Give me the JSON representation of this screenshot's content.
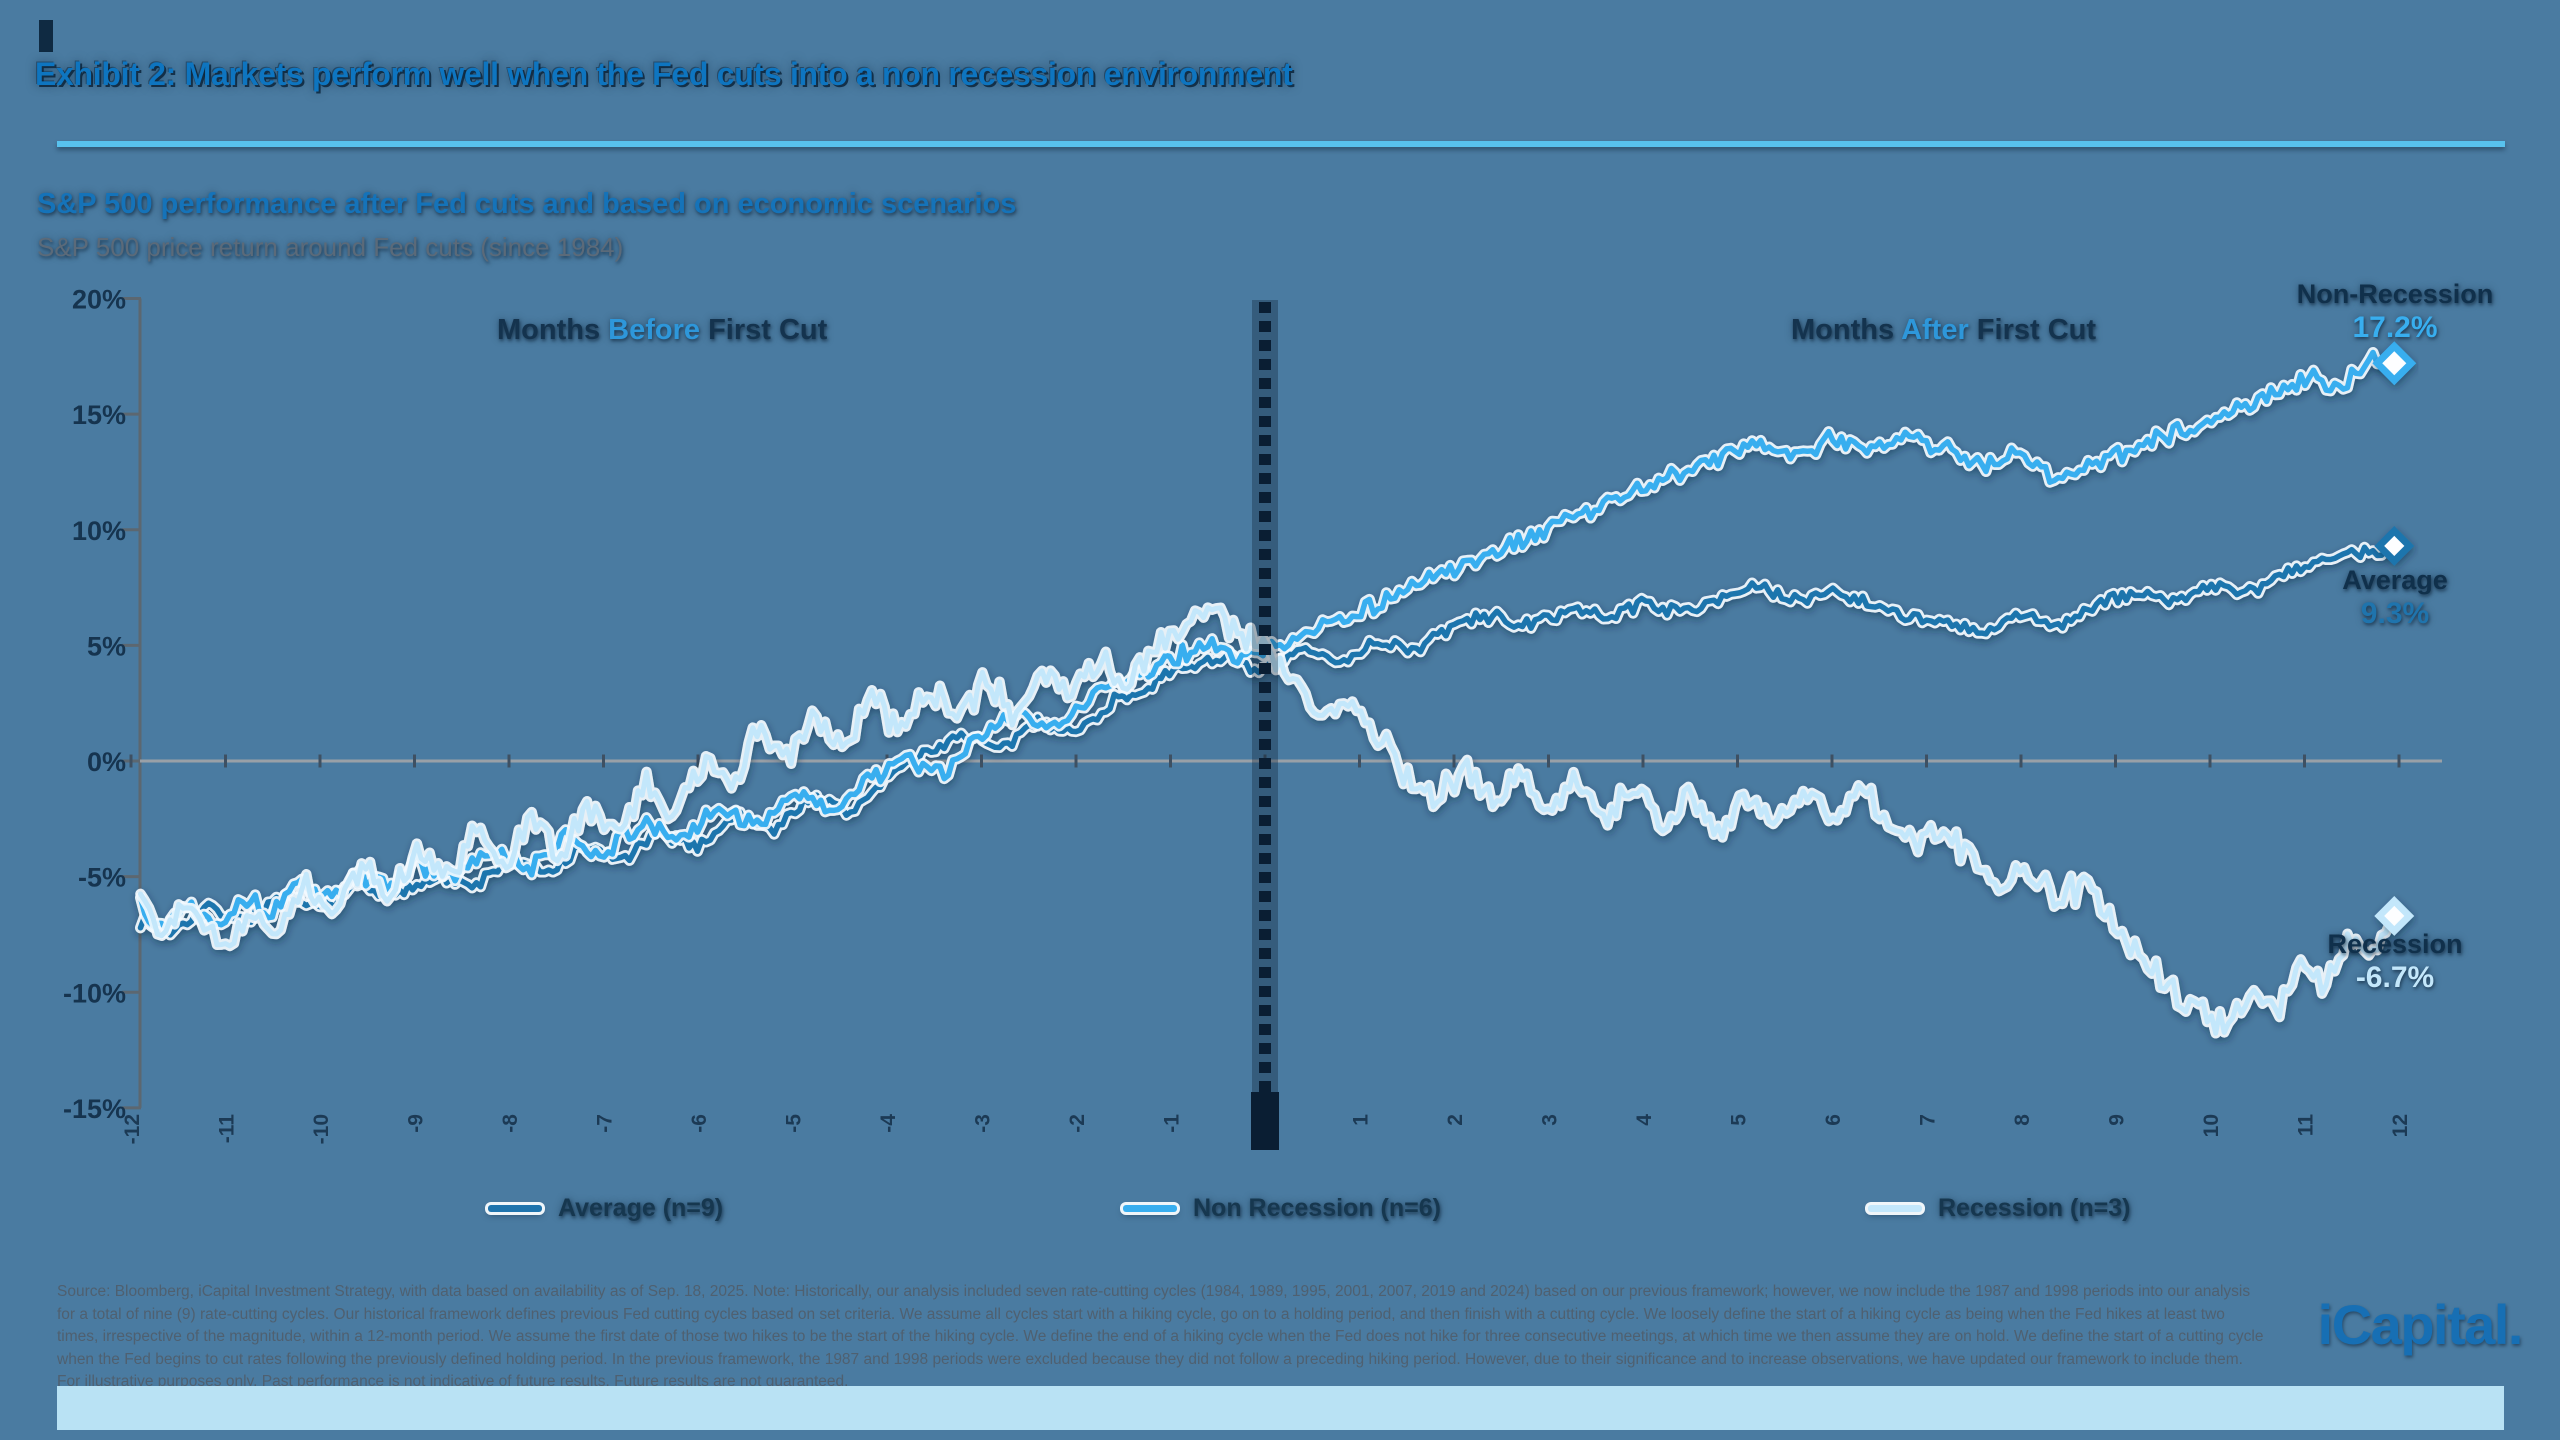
{
  "page": {
    "title": "Exhibit 2: Markets perform well when the Fed cuts into a non recession environment",
    "subtitle": "S&P 500 performance after Fed cuts and based on economic scenarios",
    "description": "S&P 500 price return around Fed cuts (since 1984)",
    "footnote": "Source: Bloomberg, iCapital Investment Strategy, with data based on availability as of Sep. 18, 2025. Note: Historically, our analysis included seven rate-cutting cycles (1984, 1989, 1995, 2001, 2007, 2019 and 2024) based on our previous framework; however, we now include the 1987 and 1998 periods into our analysis for a total of nine (9) rate-cutting cycles. Our historical framework defines previous Fed cutting cycles based on set criteria. We assume all cycles start with a hiking cycle, go on to a holding period, and then finish with a cutting cycle. We loosely define the start of a hiking cycle as being when the Fed hikes at least two times, irrespective of the magnitude, within a 12-month period. We assume the first date of those two hikes to be the start of the hiking cycle. We define the end of a hiking cycle when the Fed does not hike for three consecutive meetings, at which time we then assume they are on hold. We define the start of a cutting cycle when the Fed begins to cut rates following the previously defined holding period. In the previous framework, the 1987 and 1998 periods were excluded because they did not follow a preceding hiking period. However, due to their significance and to increase observations, we have updated our framework to include them. For illustrative purposes only. Past performance is not indicative of future results. Future results are not guaranteed.",
    "brand": "iCapital.",
    "colors": {
      "background": "#4a7ba1",
      "accent_blue": "#1573b9",
      "title_blue": "#0e75c0",
      "divider_blue": "#58c2ee",
      "dark_navy": "#14334e",
      "zero_line_gray": "#99a0a7",
      "event_line_navy": "#0a1e33",
      "bottom_band": "#b9e2f4"
    }
  },
  "chart_data": {
    "type": "line",
    "title": "S&P 500 price return around Fed cuts (since 1984)",
    "grid": "zero-line only",
    "legend_position": "bottom",
    "x_axis": {
      "unit": "months relative to first Fed cut",
      "range": [
        -12,
        12
      ],
      "ticks": [
        -12,
        -11,
        -10,
        -9,
        -8,
        -7,
        -6,
        -5,
        -4,
        -3,
        -2,
        -1,
        0,
        1,
        2,
        3,
        4,
        5,
        6,
        7,
        8,
        9,
        10,
        11,
        12
      ],
      "annotation_before": {
        "pre": "Months ",
        "em": "Before",
        "post": " First Cut"
      },
      "annotation_after": {
        "pre": "Months ",
        "em": "After",
        "post": " First Cut"
      }
    },
    "y_axis": {
      "unit": "%",
      "min": -15,
      "max": 20,
      "ticks_pct": [
        20,
        15,
        10,
        5,
        0,
        -5,
        -10,
        -15
      ]
    },
    "event_line_x": 0,
    "series": [
      {
        "id": "average",
        "name": "Average (n=9)",
        "color": "#1f74ad",
        "end_label": "Average",
        "end_value": 9.3,
        "end_value_label": "9.3%",
        "anchors_month_pct": [
          [
            -11.9,
            -6.9
          ],
          [
            -11.6,
            -7.4
          ],
          [
            -11.2,
            -6.3
          ],
          [
            -10.8,
            -6.9
          ],
          [
            -10.4,
            -5.9
          ],
          [
            -10,
            -6.4
          ],
          [
            -9.6,
            -5.4
          ],
          [
            -9.2,
            -5.9
          ],
          [
            -8.8,
            -4.9
          ],
          [
            -8.4,
            -5.5
          ],
          [
            -8,
            -4.3
          ],
          [
            -7.6,
            -4.9
          ],
          [
            -7.2,
            -3.7
          ],
          [
            -6.8,
            -4.3
          ],
          [
            -6.4,
            -3.1
          ],
          [
            -6,
            -3.7
          ],
          [
            -5.6,
            -2.3
          ],
          [
            -5.2,
            -3.0
          ],
          [
            -4.8,
            -1.5
          ],
          [
            -4.4,
            -2.3
          ],
          [
            -4,
            -0.7
          ],
          [
            -3.6,
            0.3
          ],
          [
            -3.2,
            1.2
          ],
          [
            -2.8,
            0.4
          ],
          [
            -2.4,
            1.8
          ],
          [
            -2,
            1.2
          ],
          [
            -1.6,
            2.6
          ],
          [
            -1.2,
            3.3
          ],
          [
            -0.8,
            4.1
          ],
          [
            -0.4,
            4.6
          ],
          [
            -0.15,
            3.8
          ],
          [
            0,
            4.0
          ],
          [
            0.4,
            4.8
          ],
          [
            0.8,
            4.3
          ],
          [
            1.2,
            5.2
          ],
          [
            1.6,
            4.8
          ],
          [
            2,
            5.9
          ],
          [
            2.4,
            6.3
          ],
          [
            2.8,
            5.8
          ],
          [
            3.2,
            6.6
          ],
          [
            3.6,
            6.2
          ],
          [
            4,
            6.9
          ],
          [
            4.4,
            6.4
          ],
          [
            4.8,
            7.1
          ],
          [
            5.2,
            7.5
          ],
          [
            5.6,
            6.9
          ],
          [
            6,
            7.4
          ],
          [
            6.4,
            6.8
          ],
          [
            6.8,
            6.3
          ],
          [
            7.2,
            5.9
          ],
          [
            7.6,
            5.5
          ],
          [
            8,
            6.3
          ],
          [
            8.4,
            5.9
          ],
          [
            8.8,
            6.7
          ],
          [
            9.2,
            7.3
          ],
          [
            9.6,
            6.9
          ],
          [
            10,
            7.6
          ],
          [
            10.4,
            7.2
          ],
          [
            10.8,
            8.1
          ],
          [
            11.2,
            8.7
          ],
          [
            11.5,
            9.2
          ],
          [
            11.75,
            8.9
          ],
          [
            11.95,
            9.3
          ]
        ]
      },
      {
        "id": "non_recession",
        "name": "Non Recession (n=6)",
        "color": "#38aeef",
        "end_label": "Non-Recession",
        "end_value": 17.2,
        "end_value_label": "17.2%",
        "anchors_month_pct": [
          [
            -11.9,
            -5.9
          ],
          [
            -11.7,
            -7.3
          ],
          [
            -11.4,
            -6.1
          ],
          [
            -11.1,
            -7.0
          ],
          [
            -10.8,
            -5.9
          ],
          [
            -10.5,
            -6.6
          ],
          [
            -10.2,
            -5.2
          ],
          [
            -9.9,
            -6.0
          ],
          [
            -9.6,
            -4.8
          ],
          [
            -9.3,
            -5.5
          ],
          [
            -9,
            -4.4
          ],
          [
            -8.6,
            -5.1
          ],
          [
            -8.2,
            -3.9
          ],
          [
            -7.8,
            -4.7
          ],
          [
            -7.4,
            -3.3
          ],
          [
            -7,
            -4.0
          ],
          [
            -6.6,
            -2.7
          ],
          [
            -6.2,
            -3.5
          ],
          [
            -5.8,
            -2.0
          ],
          [
            -5.4,
            -2.8
          ],
          [
            -5,
            -1.4
          ],
          [
            -4.6,
            -2.2
          ],
          [
            -4.2,
            -0.8
          ],
          [
            -3.8,
            0.2
          ],
          [
            -3.4,
            -0.6
          ],
          [
            -3,
            1.1
          ],
          [
            -2.6,
            2.2
          ],
          [
            -2.2,
            1.4
          ],
          [
            -1.8,
            2.9
          ],
          [
            -1.4,
            3.7
          ],
          [
            -1,
            4.4
          ],
          [
            -0.6,
            5.1
          ],
          [
            -0.3,
            4.4
          ],
          [
            0,
            4.7
          ],
          [
            0.4,
            5.5
          ],
          [
            0.8,
            6.2
          ],
          [
            1.2,
            6.8
          ],
          [
            1.6,
            7.6
          ],
          [
            2,
            8.3
          ],
          [
            2.4,
            8.9
          ],
          [
            2.8,
            9.6
          ],
          [
            3.2,
            10.4
          ],
          [
            3.6,
            11.1
          ],
          [
            4,
            11.9
          ],
          [
            4.4,
            12.5
          ],
          [
            4.8,
            13.1
          ],
          [
            5.2,
            13.7
          ],
          [
            5.6,
            13.2
          ],
          [
            6,
            13.9
          ],
          [
            6.4,
            13.4
          ],
          [
            6.8,
            14.1
          ],
          [
            7.2,
            13.5
          ],
          [
            7.6,
            12.8
          ],
          [
            8,
            13.3
          ],
          [
            8.4,
            12.2
          ],
          [
            8.8,
            12.8
          ],
          [
            9.2,
            13.5
          ],
          [
            9.6,
            14.2
          ],
          [
            10,
            14.8
          ],
          [
            10.4,
            15.4
          ],
          [
            10.8,
            16.1
          ],
          [
            11.1,
            16.7
          ],
          [
            11.4,
            16.1
          ],
          [
            11.7,
            17.4
          ],
          [
            11.95,
            17.2
          ]
        ]
      },
      {
        "id": "recession",
        "name": "Recession (n=3)",
        "color": "#c3e7fb",
        "end_label": "Recession",
        "end_value": -6.7,
        "end_value_label": "-6.7%",
        "anchors_month_pct": [
          [
            -11.9,
            -5.3
          ],
          [
            -11.65,
            -7.7
          ],
          [
            -11.35,
            -5.9
          ],
          [
            -11.05,
            -8.3
          ],
          [
            -10.75,
            -6.5
          ],
          [
            -10.45,
            -7.5
          ],
          [
            -10.15,
            -5.3
          ],
          [
            -9.85,
            -6.7
          ],
          [
            -9.55,
            -4.5
          ],
          [
            -9.25,
            -5.9
          ],
          [
            -8.95,
            -3.7
          ],
          [
            -8.65,
            -5.1
          ],
          [
            -8.35,
            -3.1
          ],
          [
            -8.05,
            -4.7
          ],
          [
            -7.75,
            -2.5
          ],
          [
            -7.45,
            -4.1
          ],
          [
            -7.15,
            -1.9
          ],
          [
            -6.85,
            -3.3
          ],
          [
            -6.55,
            -0.9
          ],
          [
            -6.25,
            -2.3
          ],
          [
            -5.95,
            0.1
          ],
          [
            -5.65,
            -1.3
          ],
          [
            -5.35,
            1.5
          ],
          [
            -5.05,
            0.1
          ],
          [
            -4.75,
            2.1
          ],
          [
            -4.45,
            0.7
          ],
          [
            -4.15,
            2.7
          ],
          [
            -3.85,
            1.3
          ],
          [
            -3.55,
            3.1
          ],
          [
            -3.25,
            1.7
          ],
          [
            -2.95,
            3.5
          ],
          [
            -2.65,
            2.1
          ],
          [
            -2.35,
            4.1
          ],
          [
            -2.05,
            2.7
          ],
          [
            -1.75,
            4.5
          ],
          [
            -1.45,
            3.1
          ],
          [
            -1.15,
            5.1
          ],
          [
            -0.85,
            5.9
          ],
          [
            -0.55,
            6.7
          ],
          [
            -0.3,
            5.5
          ],
          [
            0,
            5.1
          ],
          [
            0.3,
            3.5
          ],
          [
            0.6,
            1.9
          ],
          [
            0.9,
            2.9
          ],
          [
            1.2,
            1.1
          ],
          [
            1.5,
            -0.7
          ],
          [
            1.8,
            -1.7
          ],
          [
            2.1,
            -0.3
          ],
          [
            2.4,
            -1.9
          ],
          [
            2.7,
            -0.5
          ],
          [
            3,
            -2.1
          ],
          [
            3.3,
            -0.9
          ],
          [
            3.6,
            -2.5
          ],
          [
            3.9,
            -1.1
          ],
          [
            4.2,
            -2.9
          ],
          [
            4.5,
            -1.5
          ],
          [
            4.8,
            -3.1
          ],
          [
            5.1,
            -1.7
          ],
          [
            5.4,
            -2.9
          ],
          [
            5.7,
            -1.3
          ],
          [
            6,
            -2.5
          ],
          [
            6.3,
            -1.1
          ],
          [
            6.6,
            -2.7
          ],
          [
            6.9,
            -3.9
          ],
          [
            7.2,
            -2.9
          ],
          [
            7.5,
            -4.3
          ],
          [
            7.8,
            -5.5
          ],
          [
            8.1,
            -4.5
          ],
          [
            8.4,
            -6.1
          ],
          [
            8.7,
            -5.1
          ],
          [
            9,
            -7.3
          ],
          [
            9.3,
            -8.7
          ],
          [
            9.6,
            -9.9
          ],
          [
            9.9,
            -10.9
          ],
          [
            10.2,
            -11.5
          ],
          [
            10.45,
            -9.9
          ],
          [
            10.7,
            -11.1
          ],
          [
            10.95,
            -8.9
          ],
          [
            11.2,
            -9.9
          ],
          [
            11.45,
            -7.7
          ],
          [
            11.7,
            -8.5
          ],
          [
            11.95,
            -6.7
          ]
        ]
      }
    ]
  }
}
